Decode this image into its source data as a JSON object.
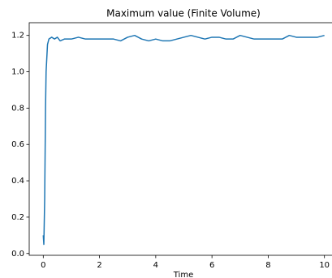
{
  "chart_data": {
    "type": "line",
    "title": "Maximum value (Finite Volume)",
    "x_label": "Time",
    "x": [
      0,
      0.02,
      0.05,
      0.08,
      0.1,
      0.15,
      0.2,
      0.3,
      0.4,
      0.5,
      0.6,
      0.75,
      1.0,
      1.25,
      1.5,
      1.75,
      2.0,
      2.25,
      2.5,
      2.75,
      3.0,
      3.25,
      3.5,
      3.75,
      4.0,
      4.25,
      4.5,
      4.75,
      5.0,
      5.25,
      5.5,
      5.75,
      6.0,
      6.25,
      6.5,
      6.75,
      7.0,
      7.25,
      7.5,
      7.75,
      8.0,
      8.25,
      8.5,
      8.75,
      9.0,
      9.25,
      9.5,
      9.75,
      10.0
    ],
    "values": [
      0.1,
      0.05,
      0.3,
      0.8,
      1.0,
      1.15,
      1.18,
      1.19,
      1.18,
      1.19,
      1.17,
      1.18,
      1.18,
      1.19,
      1.18,
      1.18,
      1.18,
      1.18,
      1.18,
      1.17,
      1.19,
      1.2,
      1.18,
      1.17,
      1.18,
      1.17,
      1.17,
      1.18,
      1.19,
      1.2,
      1.19,
      1.18,
      1.19,
      1.19,
      1.18,
      1.18,
      1.2,
      1.19,
      1.18,
      1.18,
      1.18,
      1.18,
      1.18,
      1.2,
      1.19,
      1.19,
      1.19,
      1.19,
      1.2
    ],
    "color": "#1f77b4",
    "xlim": [
      -0.5,
      10.5
    ],
    "xticks": [
      0,
      2,
      4,
      6,
      8,
      10
    ],
    "ylim": [
      -0.01,
      1.27
    ],
    "yticks": [
      {
        "value": 0,
        "label": "0.0"
      },
      0.2,
      0.4,
      0.6,
      0.8,
      {
        "value": 1,
        "label": "1.0"
      },
      1.2
    ],
    "grid": false
  }
}
